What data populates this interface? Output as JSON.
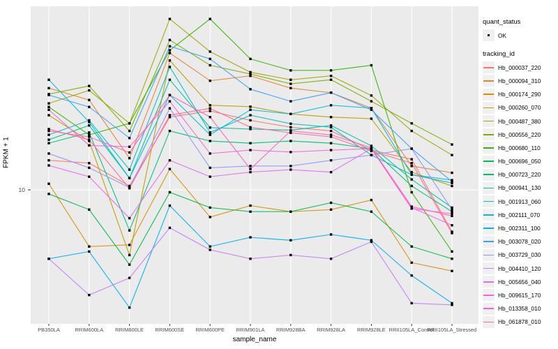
{
  "figure": {
    "legend": {
      "quant_status_title": "quant_status",
      "ok_label": "OK",
      "tracking_title": "tracking_id"
    }
  },
  "colors": {
    "panel_bg": "#EBEBEB",
    "grid": "#FFFFFF",
    "axis_text": "#4D4D4D",
    "tick_mark": "#333333",
    "point": "#000000",
    "legend_key_bg": "#F0F0F0"
  },
  "chart_data": {
    "type": "line",
    "title": "",
    "xlabel": "sample_name",
    "ylabel": "FPKM + 1",
    "y_scale": "log10",
    "y_tick_labels": [
      "10"
    ],
    "ylim": [
      2,
      100
    ],
    "grid": true,
    "legend_position": "right",
    "point_marker": "filled-square",
    "quant_status": "OK",
    "categories": [
      "PB350LA",
      "RRIM600LA",
      "RRIM600LE",
      "RRIM600SE",
      "RRIM600PE",
      "RRIM901LA",
      "RRIM928BA",
      "RRIM928LA",
      "RRIM928LE",
      "RRII105LA_Control",
      "RRII105LA_Stressed"
    ],
    "series": [
      {
        "name": "Hb_000037_220",
        "color": "#F8766D",
        "values": [
          14.5,
          14.0,
          10.5,
          25.0,
          27.0,
          24.0,
          22.0,
          21.0,
          16.5,
          14.7,
          5.9
        ]
      },
      {
        "name": "Hb_000094_310",
        "color": "#EA8331",
        "values": [
          36.0,
          31.0,
          14.9,
          56.0,
          39.5,
          42.0,
          36.0,
          34.0,
          28.0,
          13.5,
          12.4
        ]
      },
      {
        "name": "Hb_000174_290",
        "color": "#D89000",
        "values": [
          10.8,
          4.9,
          5.0,
          13.0,
          7.1,
          8.2,
          7.6,
          7.8,
          8.8,
          4.0,
          3.6
        ]
      },
      {
        "name": "Hb_000260_070",
        "color": "#C09B00",
        "values": [
          25.6,
          18.5,
          4.4,
          51.0,
          29.0,
          28.5,
          26.0,
          25.0,
          24.5,
          12.5,
          10.5
        ]
      },
      {
        "name": "Hb_000487_380",
        "color": "#A3A500",
        "values": [
          29.7,
          35.0,
          23.1,
          86.0,
          57.0,
          44.0,
          40.0,
          42.0,
          32.8,
          21.0,
          15.5
        ]
      },
      {
        "name": "Hb_000556_220",
        "color": "#7CAE00",
        "values": [
          33.4,
          37.0,
          21.0,
          66.0,
          48.0,
          43.0,
          38.0,
          40.0,
          30.5,
          23.1,
          17.7
        ]
      },
      {
        "name": "Hb_000680_110",
        "color": "#39B600",
        "values": [
          28.4,
          20.0,
          23.1,
          58.0,
          86.0,
          52.0,
          45.0,
          45.0,
          48.0,
          9.7,
          4.6
        ]
      },
      {
        "name": "Hb_000696_050",
        "color": "#00BB4E",
        "values": [
          9.5,
          7.8,
          3.9,
          9.7,
          8.0,
          7.6,
          7.6,
          8.5,
          7.6,
          4.9,
          4.2
        ]
      },
      {
        "name": "Hb_000723_220",
        "color": "#00BF7D",
        "values": [
          18.0,
          20.6,
          6.0,
          21.0,
          18.5,
          18.0,
          18.5,
          18.0,
          16.8,
          10.5,
          7.6
        ]
      },
      {
        "name": "Hb_000941_130",
        "color": "#00C1A3",
        "values": [
          18.8,
          22.5,
          11.6,
          40.0,
          21.9,
          21.5,
          21.2,
          22.5,
          17.4,
          11.4,
          8.0
        ]
      },
      {
        "name": "Hb_001913_060",
        "color": "#00BFC4",
        "values": [
          20.0,
          24.0,
          12.9,
          47.0,
          20.6,
          25.6,
          23.0,
          22.0,
          15.5,
          12.1,
          10.9
        ]
      },
      {
        "name": "Hb_002111_070",
        "color": "#00BAE0",
        "values": [
          40.0,
          23.5,
          11.6,
          33.0,
          20.0,
          27.4,
          26.0,
          29.0,
          28.0,
          12.1,
          11.3
        ]
      },
      {
        "name": "Hb_002311_100",
        "color": "#00B0F6",
        "values": [
          4.2,
          4.6,
          2.27,
          8.2,
          4.9,
          5.5,
          5.3,
          5.7,
          5.3,
          3.4,
          2.4
        ]
      },
      {
        "name": "Hb_003078_020",
        "color": "#35A2FF",
        "values": [
          33.0,
          28.4,
          19.2,
          61.0,
          52.0,
          35.5,
          30.5,
          34.0,
          27.4,
          16.8,
          11.1
        ]
      },
      {
        "name": "Hb_003729_030",
        "color": "#9590FF",
        "values": [
          15.8,
          13.2,
          10.3,
          27.9,
          13.2,
          13.5,
          13.5,
          14.5,
          15.5,
          16.8,
          7.8
        ]
      },
      {
        "name": "Hb_004410_120",
        "color": "#C77CFF",
        "values": [
          4.2,
          2.66,
          3.3,
          6.2,
          4.7,
          4.2,
          4.4,
          4.2,
          5.2,
          2.4,
          2.35
        ]
      },
      {
        "name": "Hb_005656_040",
        "color": "#E76BF3",
        "values": [
          13.6,
          11.8,
          7.0,
          14.5,
          11.8,
          12.5,
          12.9,
          12.5,
          16.8,
          8.0,
          6.4
        ]
      },
      {
        "name": "Hb_009615_170",
        "color": "#FA62DB",
        "values": [
          27.4,
          17.5,
          17.2,
          30.5,
          15.8,
          16.5,
          16.1,
          16.5,
          16.8,
          7.9,
          7.4
        ]
      },
      {
        "name": "Hb_013358_010",
        "color": "#FF62BC",
        "values": [
          21.0,
          19.5,
          16.0,
          33.0,
          25.0,
          13.0,
          21.0,
          20.0,
          17.0,
          8.1,
          7.2
        ]
      },
      {
        "name": "Hb_061878_010",
        "color": "#FF6A98",
        "values": [
          21.5,
          18.8,
          10.2,
          25.6,
          27.9,
          22.0,
          20.5,
          19.5,
          16.3,
          14.0,
          5.8
        ]
      }
    ]
  }
}
